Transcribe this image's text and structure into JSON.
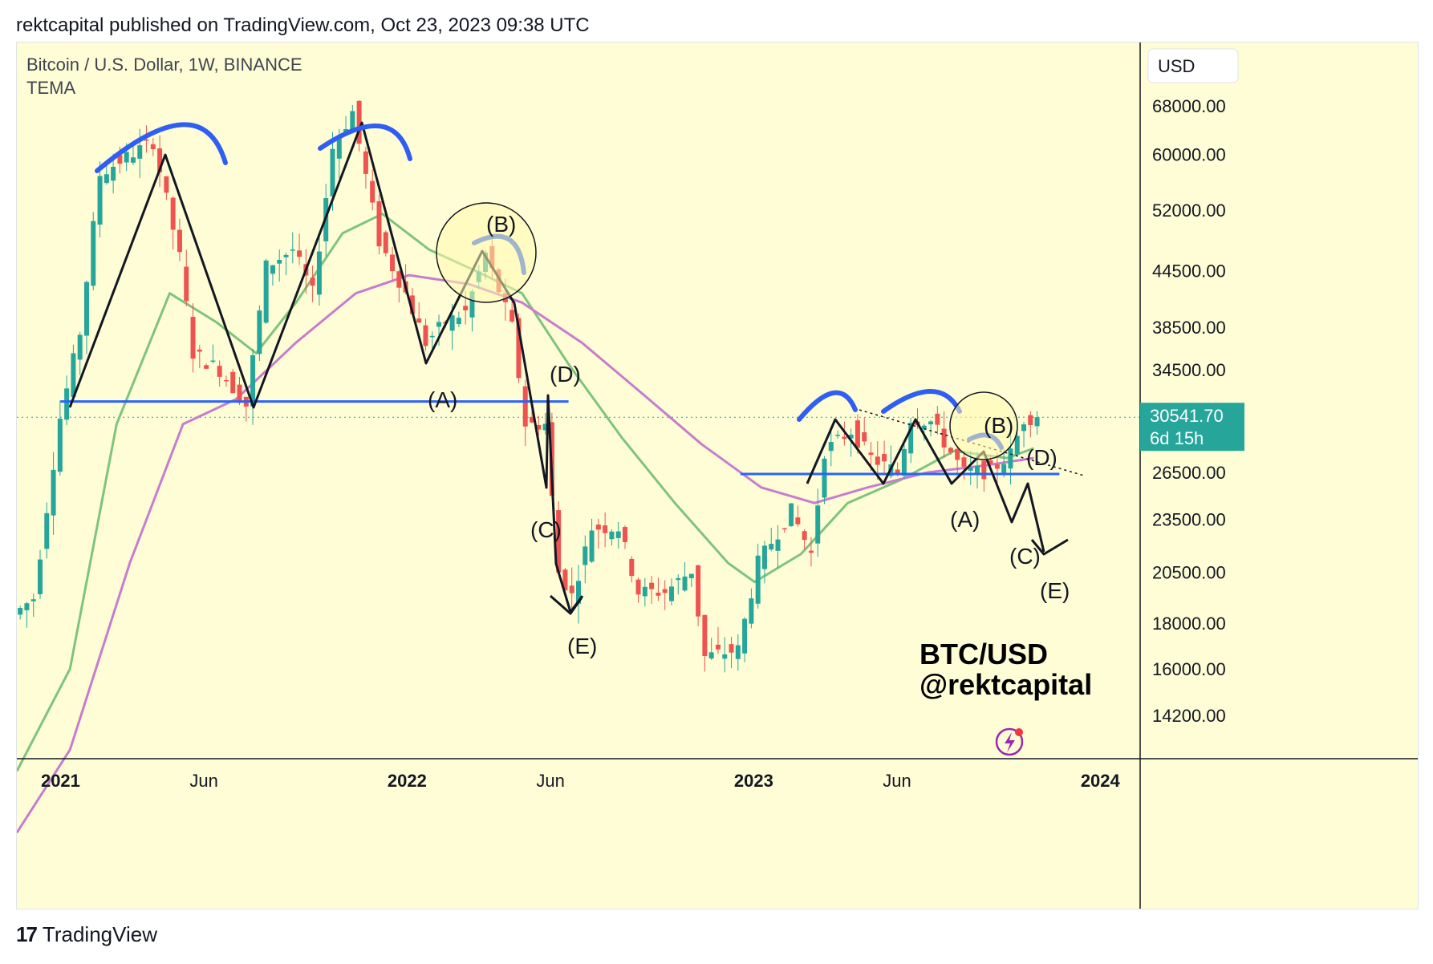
{
  "header": {
    "text": "rektcapital published on TradingView.com, Oct 23, 2023 09:38 UTC"
  },
  "footer": {
    "logo": "17",
    "brand": "TradingView"
  },
  "colors": {
    "background": "#fffdd6",
    "up": "#26a69a",
    "down": "#ef5350",
    "ema_green": "#7ec47c",
    "ema_purple": "#c77dcc",
    "support": "#2962ff",
    "price_tag": "#26a69a"
  },
  "chart_data": {
    "type": "candlestick",
    "symbol_line": "Bitcoin / U.S. Dollar, 1W, BINANCE",
    "indicator": "TEMA",
    "currency_label": "USD",
    "y_scale": "log",
    "y_ticks": [
      "68000.00",
      "60000.00",
      "52000.00",
      "44500.00",
      "38500.00",
      "34500.00",
      "26500.00",
      "23500.00",
      "20500.00",
      "18000.00",
      "16000.00",
      "14200.00"
    ],
    "x_ticks": [
      "2021",
      "Jun",
      "2022",
      "Jun",
      "2023",
      "Jun",
      "2024"
    ],
    "x_range": [
      "2020-11-16",
      "2024-02-12"
    ],
    "y_range": [
      12700,
      80000
    ],
    "current_price": "30541.70",
    "countdown": "6d 15h",
    "watermark": [
      "BTC/USD",
      "@rektcapital"
    ],
    "annotations": {
      "labels": [
        "(B)",
        "(A)",
        "(D)",
        "(C)",
        "(E)",
        "(B)",
        "(A)",
        "(D)",
        "(C)",
        "(E)"
      ]
    },
    "support_levels": [
      {
        "price": 31800,
        "from": "2021-01-01",
        "to": "2022-06-20"
      },
      {
        "price": 26400,
        "from": "2022-12-18",
        "to": "2023-11-19"
      }
    ],
    "price_path": [
      [
        "2020-11-16",
        18400
      ],
      [
        "2020-12-07",
        19200
      ],
      [
        "2021-01-04",
        30500
      ],
      [
        "2021-01-25",
        38000
      ],
      [
        "2021-02-15",
        57000
      ],
      [
        "2021-03-08",
        59000
      ],
      [
        "2021-04-12",
        62000
      ],
      [
        "2021-05-10",
        46000
      ],
      [
        "2021-05-24",
        36000
      ],
      [
        "2021-06-21",
        34500
      ],
      [
        "2021-07-19",
        31500
      ],
      [
        "2021-08-09",
        45000
      ],
      [
        "2021-09-06",
        47000
      ],
      [
        "2021-09-27",
        42000
      ],
      [
        "2021-10-18",
        61000
      ],
      [
        "2021-11-08",
        67000
      ],
      [
        "2021-12-06",
        48000
      ],
      [
        "2022-01-03",
        42000
      ],
      [
        "2022-01-24",
        37000
      ],
      [
        "2022-02-14",
        39000
      ],
      [
        "2022-03-07",
        40000
      ],
      [
        "2022-03-28",
        46500
      ],
      [
        "2022-04-25",
        38500
      ],
      [
        "2022-05-09",
        30000
      ],
      [
        "2022-05-30",
        30000
      ],
      [
        "2022-06-13",
        20500
      ],
      [
        "2022-06-27",
        19300
      ],
      [
        "2022-07-18",
        23000
      ],
      [
        "2022-08-15",
        23000
      ],
      [
        "2022-09-05",
        19500
      ],
      [
        "2022-10-03",
        19500
      ],
      [
        "2022-10-31",
        20600
      ],
      [
        "2022-11-14",
        16500
      ],
      [
        "2022-12-19",
        16800
      ],
      [
        "2023-01-09",
        21000
      ],
      [
        "2023-02-13",
        24000
      ],
      [
        "2023-03-06",
        21500
      ],
      [
        "2023-03-20",
        28000
      ],
      [
        "2023-04-17",
        29500
      ],
      [
        "2023-05-08",
        27500
      ],
      [
        "2023-06-05",
        26500
      ],
      [
        "2023-06-19",
        30500
      ],
      [
        "2023-07-10",
        30200
      ],
      [
        "2023-08-14",
        26500
      ],
      [
        "2023-09-11",
        26600
      ],
      [
        "2023-10-02",
        27800
      ],
      [
        "2023-10-16",
        30400
      ],
      [
        "2023-10-23",
        30541.7
      ]
    ],
    "ema_green": [
      [
        "2020-11-16",
        12300
      ],
      [
        "2021-01-11",
        16000
      ],
      [
        "2021-03-01",
        30000
      ],
      [
        "2021-04-26",
        42000
      ],
      [
        "2021-06-14",
        39000
      ],
      [
        "2021-07-26",
        36000
      ],
      [
        "2021-09-06",
        41000
      ],
      [
        "2021-10-25",
        49000
      ],
      [
        "2021-12-06",
        51500
      ],
      [
        "2022-01-24",
        47000
      ],
      [
        "2022-03-14",
        44500
      ],
      [
        "2022-05-02",
        42000
      ],
      [
        "2022-06-20",
        35000
      ],
      [
        "2022-08-15",
        29000
      ],
      [
        "2022-10-10",
        24500
      ],
      [
        "2022-12-05",
        21000
      ],
      [
        "2023-01-02",
        20000
      ],
      [
        "2023-02-20",
        21500
      ],
      [
        "2023-04-10",
        24500
      ],
      [
        "2023-06-05",
        26000
      ],
      [
        "2023-07-31",
        28000
      ],
      [
        "2023-09-25",
        27500
      ],
      [
        "2023-10-23",
        28200
      ]
    ],
    "ema_purple": [
      [
        "2020-11-16",
        10500
      ],
      [
        "2021-01-11",
        13000
      ],
      [
        "2021-03-15",
        21000
      ],
      [
        "2021-05-10",
        30000
      ],
      [
        "2021-07-05",
        32000
      ],
      [
        "2021-09-06",
        37000
      ],
      [
        "2021-11-08",
        42000
      ],
      [
        "2022-01-03",
        44000
      ],
      [
        "2022-03-07",
        43000
      ],
      [
        "2022-05-02",
        41000
      ],
      [
        "2022-07-04",
        37000
      ],
      [
        "2022-09-05",
        32500
      ],
      [
        "2022-11-07",
        28500
      ],
      [
        "2023-01-09",
        25500
      ],
      [
        "2023-03-06",
        24500
      ],
      [
        "2023-05-01",
        25500
      ],
      [
        "2023-07-03",
        26500
      ],
      [
        "2023-09-04",
        27000
      ],
      [
        "2023-10-23",
        27500
      ]
    ]
  }
}
